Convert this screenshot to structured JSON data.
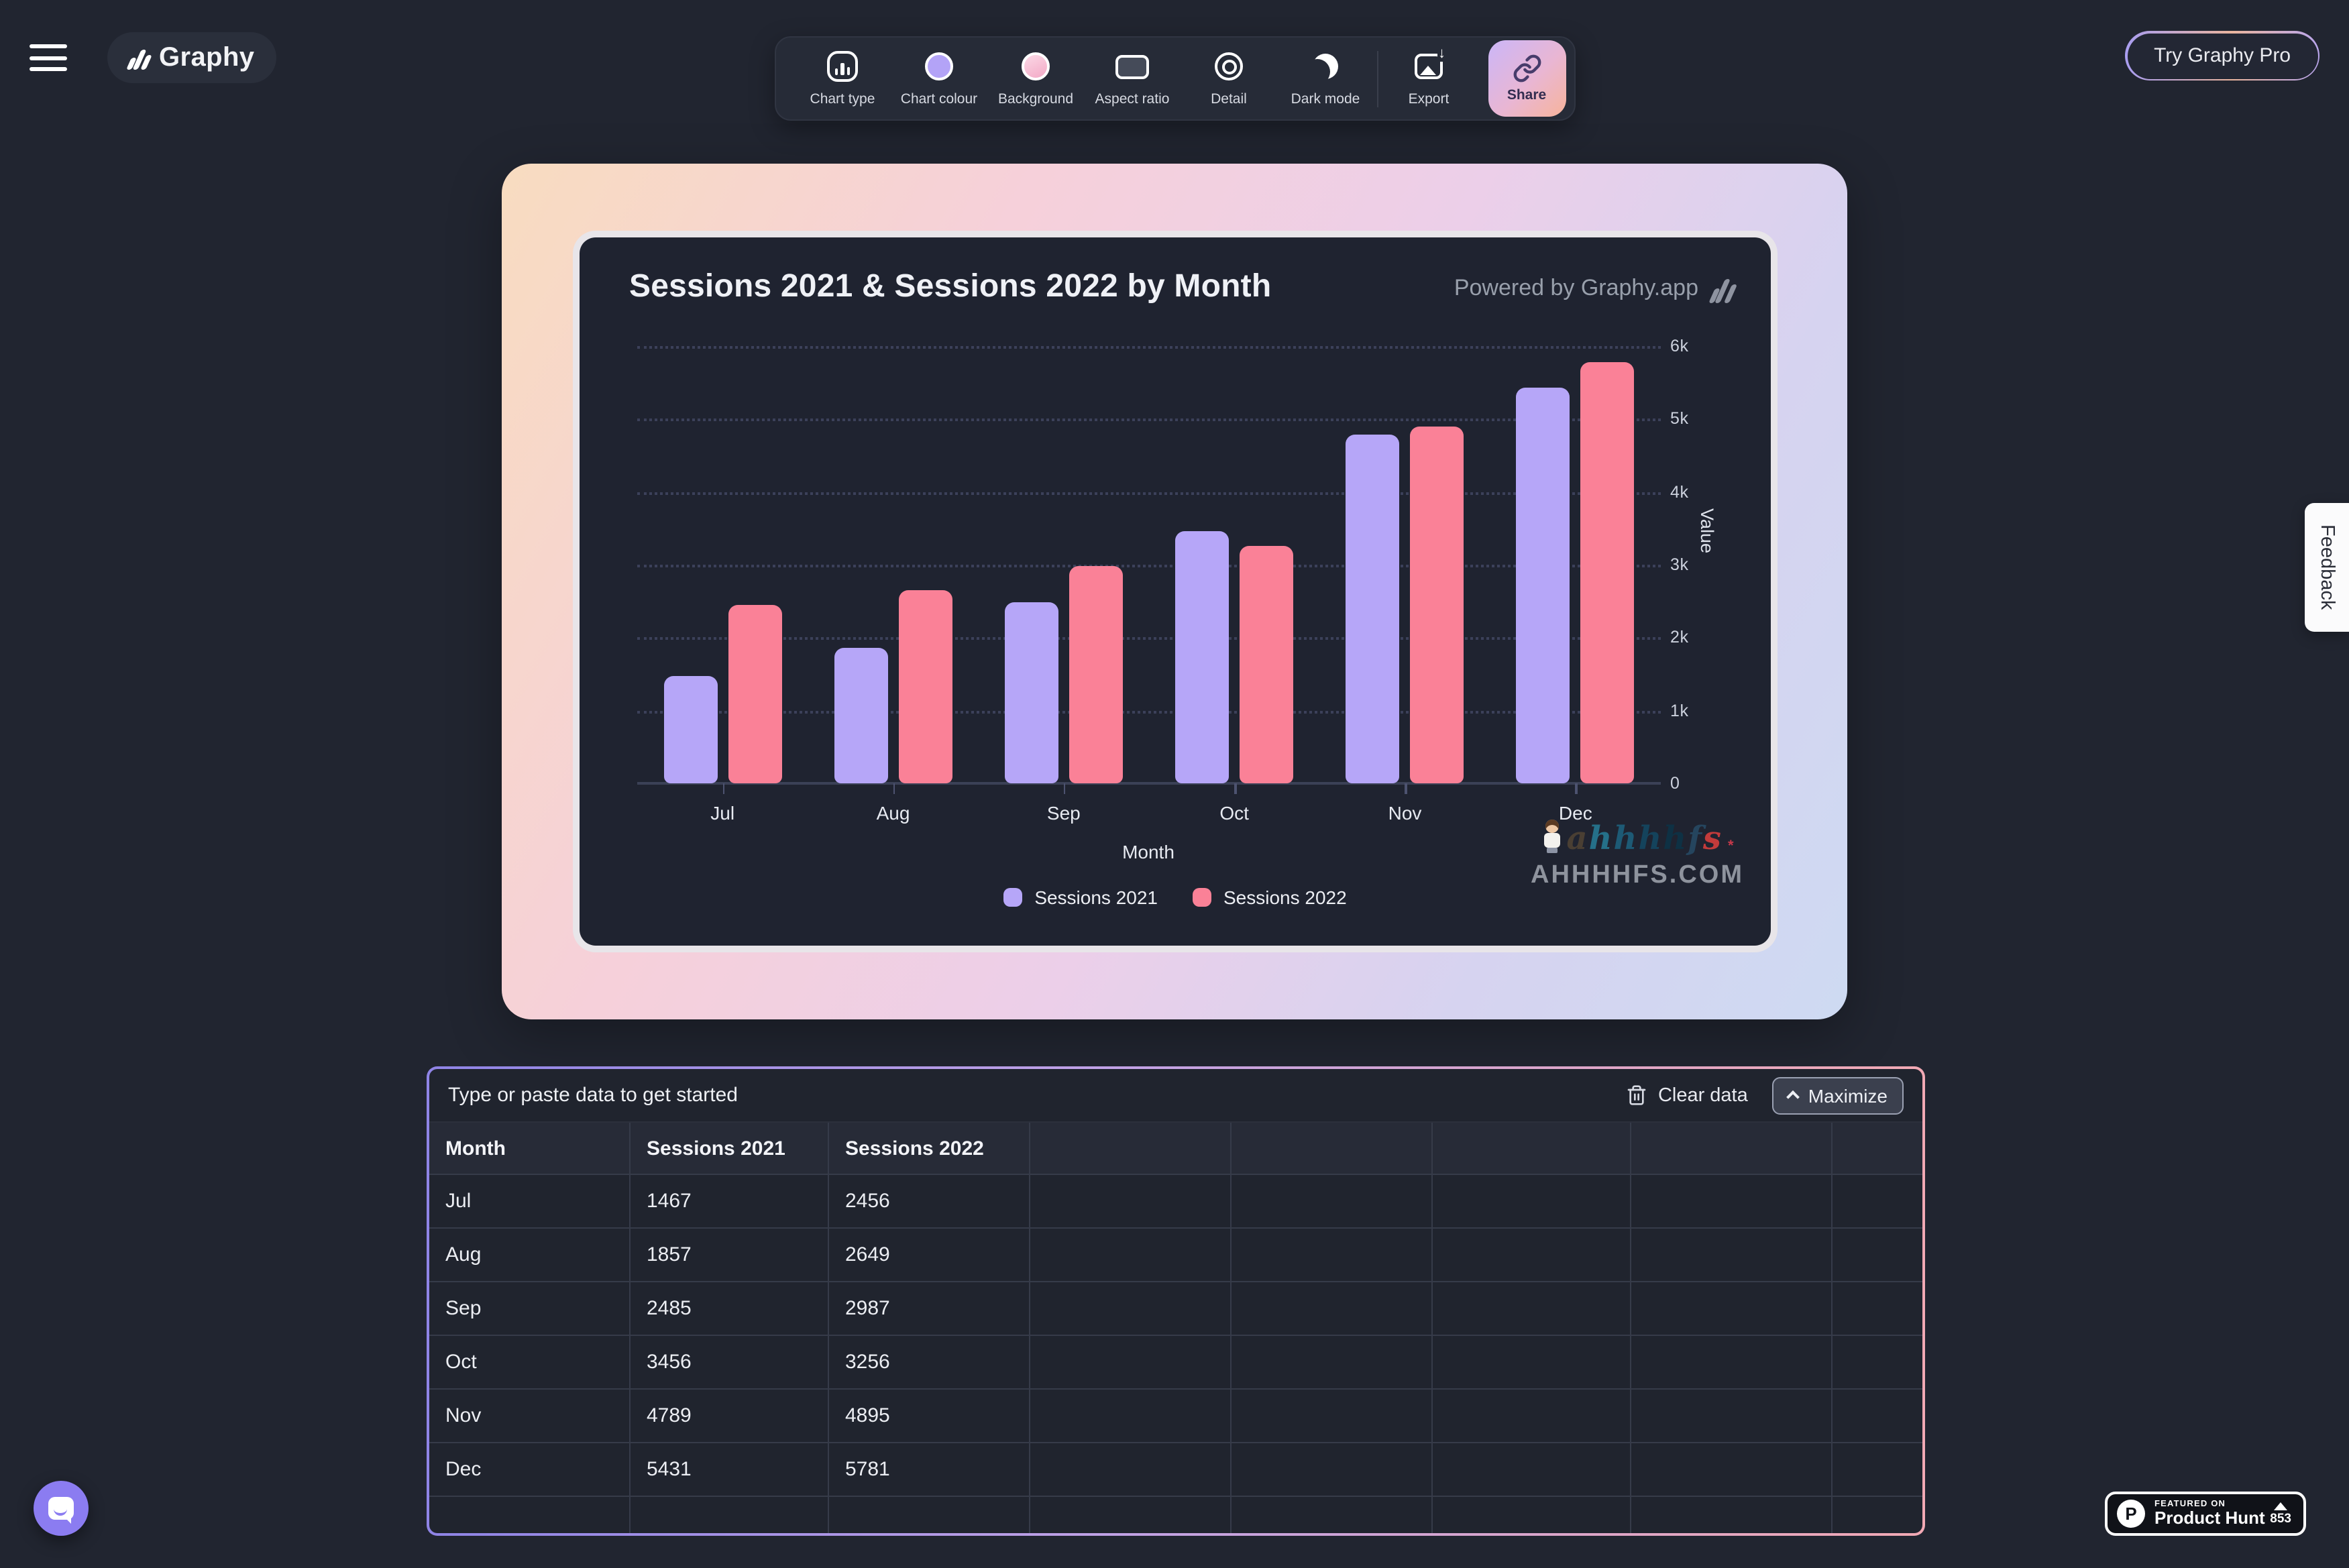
{
  "header": {
    "logo_text": "Graphy",
    "try_pro_label": "Try Graphy Pro"
  },
  "toolbar": {
    "items": [
      {
        "label": "Chart type",
        "icon": "chart-type-icon"
      },
      {
        "label": "Chart colour",
        "icon": "chart-colour-icon"
      },
      {
        "label": "Background",
        "icon": "background-icon"
      },
      {
        "label": "Aspect ratio",
        "icon": "aspect-ratio-icon"
      },
      {
        "label": "Detail",
        "icon": "detail-icon"
      },
      {
        "label": "Dark mode",
        "icon": "dark-mode-icon"
      },
      {
        "label": "Export",
        "icon": "export-icon"
      },
      {
        "label": "Share",
        "icon": "share-link-icon"
      }
    ]
  },
  "chart_card": {
    "powered_by": "Powered by Graphy.app"
  },
  "chart_data": {
    "type": "bar",
    "title": "Sessions 2021 & Sessions 2022 by Month",
    "categories": [
      "Jul",
      "Aug",
      "Sep",
      "Oct",
      "Nov",
      "Dec"
    ],
    "series": [
      {
        "name": "Sessions 2021",
        "color": "#b6a6f8",
        "values": [
          1467,
          1857,
          2485,
          3456,
          4789,
          5431
        ]
      },
      {
        "name": "Sessions 2022",
        "color": "#fa8197",
        "values": [
          2456,
          2649,
          2987,
          3256,
          4895,
          5781
        ]
      }
    ],
    "xlabel": "Month",
    "ylabel": "Value",
    "ylim": [
      0,
      6000
    ],
    "ytick_step": 1000,
    "grid": "dotted-horizontal",
    "legend_position": "bottom"
  },
  "watermark": {
    "script": "ahhhhfs",
    "script_colors": [
      "#4a3f33",
      "#257089",
      "#1d5a75",
      "#14435c",
      "#0e3144",
      "#25455e",
      "#c33b3b"
    ],
    "sparkles": "*",
    "domain": "AHHHHFS.COM"
  },
  "data_panel": {
    "prompt": "Type or paste data to get started",
    "clear_label": "Clear data",
    "maximize_label": "Maximize",
    "table": {
      "columns": [
        "Month",
        "Sessions 2021",
        "Sessions 2022"
      ],
      "rows": [
        [
          "Jul",
          "1467",
          "2456"
        ],
        [
          "Aug",
          "1857",
          "2649"
        ],
        [
          "Sep",
          "2485",
          "2987"
        ],
        [
          "Oct",
          "3456",
          "3256"
        ],
        [
          "Nov",
          "4789",
          "4895"
        ],
        [
          "Dec",
          "5431",
          "5781"
        ]
      ],
      "total_columns": 8
    }
  },
  "feedback_label": "Feedback",
  "product_hunt": {
    "featured_on": "FEATURED ON",
    "name": "Product Hunt",
    "logo_letter": "P",
    "votes": "853"
  },
  "colors": {
    "page_bg": "#212530",
    "panel_bg": "#1f2330",
    "accent_purple": "#8b7cf1",
    "bar_2021": "#b6a6f8",
    "bar_2022": "#fa8197"
  }
}
